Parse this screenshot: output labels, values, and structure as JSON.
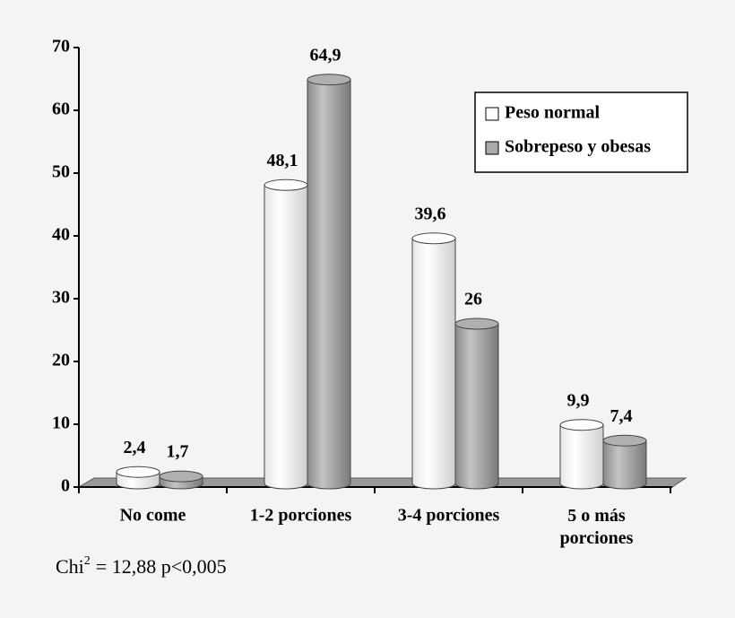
{
  "chart_data": {
    "type": "bar",
    "categories": [
      "No come",
      "1-2 porciones",
      "3-4 porciones",
      "5 o más porciones"
    ],
    "series": [
      {
        "name": "Peso normal",
        "color": "#ffffff",
        "values": [
          2.4,
          48.1,
          39.6,
          9.9
        ],
        "value_labels": [
          "2,4",
          "48,1",
          "39,6",
          "9,9"
        ]
      },
      {
        "name": "Sobrepeso y obesas",
        "color": "#b0b0b0",
        "values": [
          1.7,
          64.9,
          26,
          7.4
        ],
        "value_labels": [
          "1,7",
          "64,9",
          "26",
          "7,4"
        ]
      }
    ],
    "ylim": [
      0,
      70
    ],
    "yticks": [
      0,
      10,
      20,
      30,
      40,
      50,
      60,
      70
    ],
    "grid": false,
    "legend": "upper right",
    "annotation": {
      "base": "Chi",
      "sup": "2",
      "rest": "= 12,88  p<0,005"
    }
  }
}
